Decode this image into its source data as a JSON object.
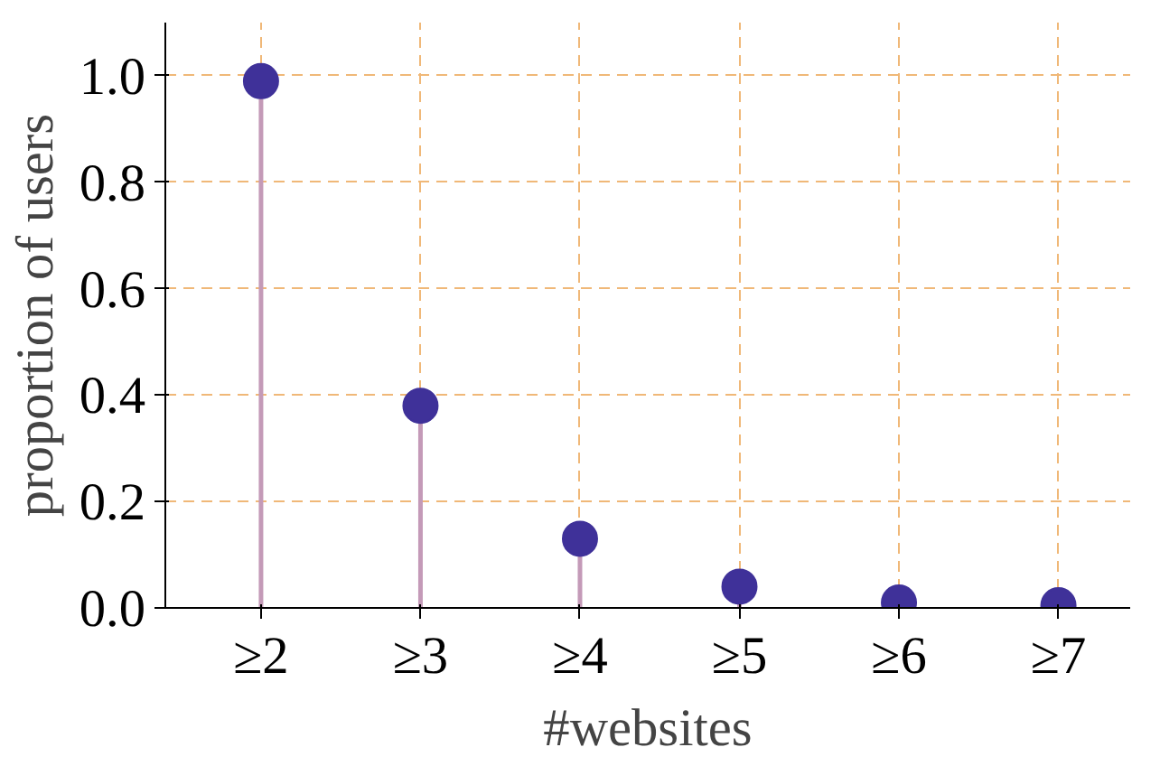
{
  "chart_data": {
    "type": "lollipop",
    "xlabel": "#websites",
    "ylabel": "proportion of users",
    "categories": [
      "≥2",
      "≥3",
      "≥4",
      "≥5",
      "≥6",
      "≥7"
    ],
    "values": [
      0.99,
      0.38,
      0.13,
      0.04,
      0.01,
      0.005
    ],
    "color": "#3f3199",
    "ylim": [
      0,
      1.1
    ],
    "yticks": [
      {
        "value": 0,
        "label": "0.0"
      },
      {
        "value": 0.2,
        "label": "0.2"
      },
      {
        "value": 0.4,
        "label": "0.4"
      },
      {
        "value": 0.6,
        "label": "0.6"
      },
      {
        "value": 0.8,
        "label": "0.8"
      },
      {
        "value": 1,
        "label": "1.0"
      }
    ],
    "grid": true,
    "marker": "circle"
  }
}
